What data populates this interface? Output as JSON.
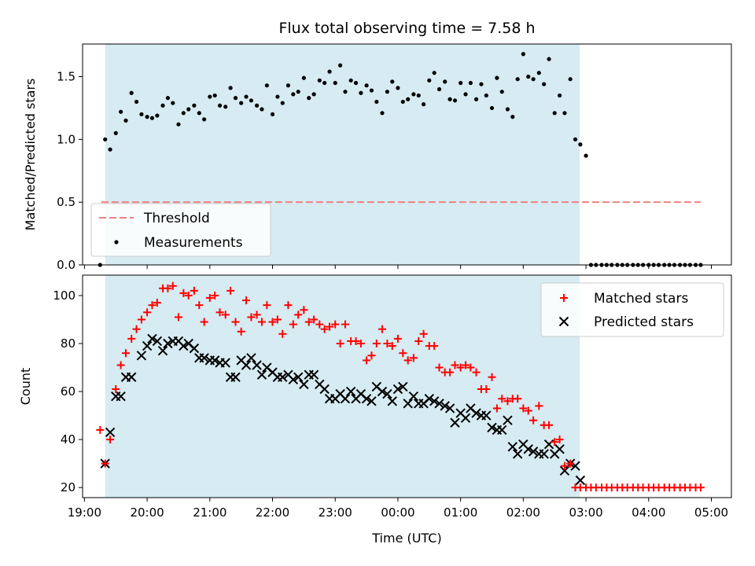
{
  "chart_data": [
    {
      "type": "scatter",
      "title": "Flux total observing time = 7.58 h",
      "xlabel": "",
      "ylabel": "Matched/Predicted stars",
      "ylim": [
        0,
        1.76
      ],
      "yticks": [
        "0.0",
        "0.5",
        "1.0",
        "1.5"
      ],
      "xlim": [
        18.97,
        29.32
      ],
      "shaded_interval": [
        19.33,
        26.9
      ],
      "legend": {
        "placement": "lower-left",
        "entries": [
          "Threshold",
          "Measurements"
        ]
      },
      "threshold": {
        "name": "Threshold",
        "x": [
          19.27,
          28.83
        ],
        "value": 0.5,
        "color": "#f08080"
      },
      "series": [
        {
          "name": "Measurements",
          "color": "#000000",
          "x": [
            19.25,
            19.33,
            19.41,
            19.5,
            19.58,
            19.66,
            19.75,
            19.83,
            19.91,
            20.0,
            20.08,
            20.16,
            20.25,
            20.33,
            20.41,
            20.5,
            20.58,
            20.66,
            20.75,
            20.83,
            20.91,
            21.0,
            21.08,
            21.16,
            21.25,
            21.33,
            21.41,
            21.5,
            21.58,
            21.66,
            21.75,
            21.83,
            21.91,
            22.0,
            22.08,
            22.16,
            22.25,
            22.33,
            22.41,
            22.5,
            22.58,
            22.66,
            22.75,
            22.83,
            22.91,
            23.0,
            23.08,
            23.16,
            23.25,
            23.33,
            23.41,
            23.5,
            23.58,
            23.66,
            23.75,
            23.83,
            23.91,
            24.0,
            24.08,
            24.16,
            24.25,
            24.33,
            24.41,
            24.5,
            24.58,
            24.66,
            24.75,
            24.83,
            24.91,
            25.0,
            25.08,
            25.16,
            25.25,
            25.33,
            25.41,
            25.5,
            25.58,
            25.66,
            25.75,
            25.83,
            25.91,
            26.0,
            26.08,
            26.16,
            26.25,
            26.33,
            26.41,
            26.5,
            26.58,
            26.66,
            26.75,
            26.83,
            26.91,
            27.0,
            27.08,
            27.16,
            27.25,
            27.33,
            27.41,
            27.5,
            27.58,
            27.66,
            27.75,
            27.83,
            27.91,
            28.0,
            28.08,
            28.16,
            28.25,
            28.33,
            28.41,
            28.5,
            28.58,
            28.66,
            28.75,
            28.83
          ],
          "y": [
            0.0,
            1.0,
            0.92,
            1.05,
            1.22,
            1.15,
            1.37,
            1.3,
            1.2,
            1.18,
            1.17,
            1.19,
            1.27,
            1.33,
            1.29,
            1.12,
            1.21,
            1.24,
            1.27,
            1.21,
            1.16,
            1.34,
            1.35,
            1.27,
            1.26,
            1.41,
            1.33,
            1.29,
            1.34,
            1.31,
            1.27,
            1.24,
            1.43,
            1.2,
            1.34,
            1.29,
            1.43,
            1.36,
            1.38,
            1.49,
            1.33,
            1.36,
            1.47,
            1.45,
            1.54,
            1.45,
            1.59,
            1.38,
            1.47,
            1.45,
            1.37,
            1.43,
            1.39,
            1.3,
            1.21,
            1.38,
            1.46,
            1.41,
            1.3,
            1.32,
            1.36,
            1.35,
            1.28,
            1.47,
            1.53,
            1.4,
            1.46,
            1.32,
            1.31,
            1.45,
            1.36,
            1.45,
            1.32,
            1.44,
            1.35,
            1.25,
            1.49,
            1.38,
            1.24,
            1.18,
            1.48,
            1.68,
            1.5,
            1.48,
            1.53,
            1.44,
            1.64,
            1.21,
            1.35,
            1.21,
            1.48,
            1.0,
            0.96,
            0.87,
            0.0,
            0.0,
            0.0,
            0.0,
            0.0,
            0.0,
            0.0,
            0.0,
            0.0,
            0.0,
            0.0,
            0.0,
            0.0,
            0.0,
            0.0,
            0.0,
            0.0,
            0.0,
            0.0,
            0.0,
            0.0,
            0.0
          ]
        }
      ]
    },
    {
      "type": "scatter",
      "title": "",
      "xlabel": "Time (UTC)",
      "ylabel": "Count",
      "ylim": [
        15.8,
        108.5
      ],
      "yticks": [
        "20",
        "40",
        "60",
        "80",
        "100"
      ],
      "xlim": [
        18.97,
        29.32
      ],
      "xticks": [
        "19:00",
        "20:00",
        "21:00",
        "22:00",
        "23:00",
        "00:00",
        "01:00",
        "02:00",
        "03:00",
        "04:00",
        "05:00"
      ],
      "shaded_interval": [
        19.33,
        26.9
      ],
      "legend": {
        "placement": "top-right",
        "entries": [
          "Matched stars",
          "Predicted stars"
        ]
      },
      "series": [
        {
          "name": "Matched stars",
          "marker": "plus",
          "color": "#ff0000",
          "x": [
            19.25,
            19.33,
            19.41,
            19.5,
            19.58,
            19.66,
            19.75,
            19.83,
            19.91,
            20.0,
            20.08,
            20.16,
            20.25,
            20.33,
            20.41,
            20.5,
            20.58,
            20.66,
            20.75,
            20.83,
            20.91,
            21.0,
            21.08,
            21.16,
            21.25,
            21.33,
            21.41,
            21.5,
            21.58,
            21.66,
            21.75,
            21.83,
            21.91,
            22.0,
            22.08,
            22.16,
            22.25,
            22.33,
            22.41,
            22.5,
            22.58,
            22.66,
            22.75,
            22.83,
            22.91,
            23.0,
            23.08,
            23.16,
            23.25,
            23.33,
            23.41,
            23.5,
            23.58,
            23.66,
            23.75,
            23.83,
            23.91,
            24.0,
            24.08,
            24.16,
            24.25,
            24.33,
            24.41,
            24.5,
            24.58,
            24.66,
            24.75,
            24.83,
            24.91,
            25.0,
            25.08,
            25.16,
            25.25,
            25.33,
            25.41,
            25.5,
            25.58,
            25.66,
            25.75,
            25.83,
            25.91,
            26.0,
            26.08,
            26.16,
            26.25,
            26.33,
            26.41,
            26.5,
            26.58,
            26.66,
            26.75,
            26.83,
            26.91,
            27.0,
            27.08,
            27.16,
            27.25,
            27.33,
            27.41,
            27.5,
            27.58,
            27.66,
            27.75,
            27.83,
            27.91,
            28.0,
            28.08,
            28.16,
            28.25,
            28.33,
            28.41,
            28.5,
            28.58,
            28.66,
            28.75,
            28.83
          ],
          "y": [
            44,
            30,
            40,
            61,
            71,
            76,
            82,
            86,
            90,
            93,
            96,
            97,
            103,
            103,
            104,
            91,
            101,
            100,
            102,
            96,
            89,
            99,
            100,
            93,
            92,
            102,
            89,
            85,
            98,
            91,
            92,
            89,
            96,
            89,
            90,
            84,
            96,
            88,
            92,
            94,
            89,
            90,
            88,
            86,
            87,
            88,
            80,
            88,
            81,
            81,
            80,
            73,
            75,
            80,
            86,
            80,
            79,
            82,
            76,
            73,
            74,
            81,
            84,
            79,
            79,
            70,
            68,
            68,
            71,
            70,
            71,
            70,
            68,
            61,
            61,
            66,
            53,
            57,
            56,
            57,
            57,
            53,
            52,
            48,
            54,
            46,
            46,
            39,
            40,
            29,
            30,
            20,
            20,
            20,
            20,
            20,
            20,
            20,
            20,
            20,
            20,
            20,
            20,
            20,
            20,
            20,
            20,
            20,
            20,
            20,
            20,
            20,
            20,
            20,
            20,
            20
          ]
        },
        {
          "name": "Predicted stars",
          "marker": "x",
          "color": "#000000",
          "x": [
            19.33,
            19.41,
            19.5,
            19.58,
            19.66,
            19.75,
            19.91,
            20.0,
            20.08,
            20.16,
            20.25,
            20.33,
            20.41,
            20.5,
            20.58,
            20.66,
            20.75,
            20.83,
            20.91,
            21.0,
            21.08,
            21.16,
            21.25,
            21.33,
            21.41,
            21.5,
            21.58,
            21.66,
            21.75,
            21.83,
            21.91,
            22.0,
            22.08,
            22.16,
            22.25,
            22.33,
            22.41,
            22.5,
            22.58,
            22.66,
            22.75,
            22.83,
            22.91,
            23.0,
            23.08,
            23.16,
            23.25,
            23.33,
            23.41,
            23.5,
            23.58,
            23.66,
            23.75,
            23.83,
            23.91,
            24.0,
            24.08,
            24.16,
            24.25,
            24.33,
            24.41,
            24.5,
            24.58,
            24.66,
            24.75,
            24.83,
            24.91,
            25.0,
            25.08,
            25.16,
            25.25,
            25.33,
            25.41,
            25.5,
            25.58,
            25.66,
            25.75,
            25.83,
            25.91,
            26.0,
            26.08,
            26.16,
            26.25,
            26.33,
            26.41,
            26.5,
            26.58,
            26.66,
            26.75,
            26.83,
            26.91
          ],
          "y": [
            30,
            43,
            58,
            58,
            66,
            66,
            75,
            79,
            82,
            81,
            77,
            80,
            81,
            81,
            79,
            80,
            78,
            74,
            74,
            73,
            73,
            72,
            72,
            66,
            66,
            73,
            71,
            74,
            71,
            67,
            70,
            68,
            66,
            66,
            67,
            65,
            66,
            63,
            67,
            67,
            63,
            61,
            57,
            57,
            59,
            57,
            60,
            57,
            59,
            57,
            56,
            62,
            60,
            59,
            56,
            61,
            62,
            55,
            58,
            55,
            55,
            57,
            56,
            55,
            54,
            53,
            47,
            51,
            49,
            53,
            51,
            50,
            50,
            45,
            44,
            44,
            48,
            37,
            34,
            38,
            36,
            35,
            34,
            34,
            38,
            34,
            36,
            27,
            30,
            29,
            23
          ]
        }
      ]
    }
  ]
}
